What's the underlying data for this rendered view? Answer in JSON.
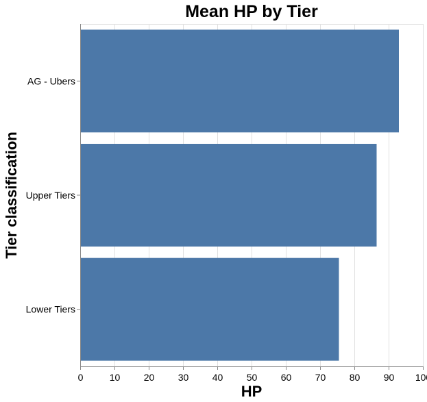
{
  "chart_data": {
    "type": "bar",
    "orientation": "horizontal",
    "title": "Mean HP by Tier",
    "xlabel": "HP",
    "ylabel": "Tier classification",
    "categories": [
      "AG - Ubers",
      "Upper Tiers",
      "Lower Tiers"
    ],
    "values": [
      93,
      86.5,
      75.5
    ],
    "xlim": [
      0,
      100
    ],
    "xticks": [
      0,
      10,
      20,
      30,
      40,
      50,
      60,
      70,
      80,
      90,
      100
    ],
    "grid": true,
    "bar_color": "#4c78a8"
  }
}
